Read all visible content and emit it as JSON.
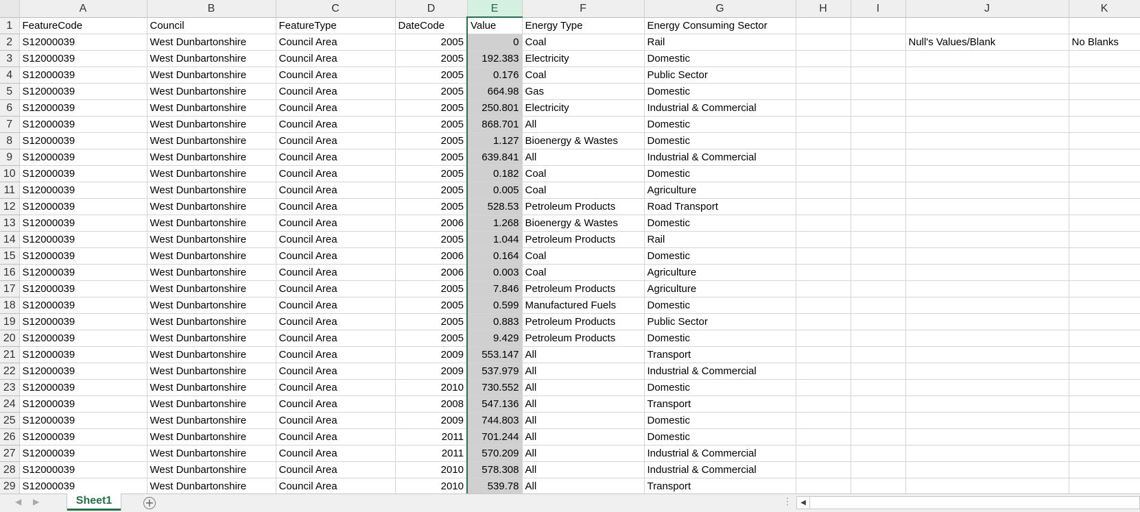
{
  "columns": [
    "A",
    "B",
    "C",
    "D",
    "E",
    "F",
    "G",
    "H",
    "I",
    "J",
    "K"
  ],
  "header": [
    "FeatureCode",
    "Council",
    "FeatureType",
    "DateCode",
    "Value",
    "Energy Type",
    "Energy Consuming Sector"
  ],
  "rows": [
    [
      "S12000039",
      "West Dunbartonshire",
      "Council Area",
      "2005",
      "0",
      "Coal",
      "Rail"
    ],
    [
      "S12000039",
      "West Dunbartonshire",
      "Council Area",
      "2005",
      "192.383",
      "Electricity",
      "Domestic"
    ],
    [
      "S12000039",
      "West Dunbartonshire",
      "Council Area",
      "2005",
      "0.176",
      "Coal",
      "Public Sector"
    ],
    [
      "S12000039",
      "West Dunbartonshire",
      "Council Area",
      "2005",
      "664.98",
      "Gas",
      "Domestic"
    ],
    [
      "S12000039",
      "West Dunbartonshire",
      "Council Area",
      "2005",
      "250.801",
      "Electricity",
      "Industrial & Commercial"
    ],
    [
      "S12000039",
      "West Dunbartonshire",
      "Council Area",
      "2005",
      "868.701",
      "All",
      "Domestic"
    ],
    [
      "S12000039",
      "West Dunbartonshire",
      "Council Area",
      "2005",
      "1.127",
      "Bioenergy & Wastes",
      "Domestic"
    ],
    [
      "S12000039",
      "West Dunbartonshire",
      "Council Area",
      "2005",
      "639.841",
      "All",
      "Industrial & Commercial"
    ],
    [
      "S12000039",
      "West Dunbartonshire",
      "Council Area",
      "2005",
      "0.182",
      "Coal",
      "Domestic"
    ],
    [
      "S12000039",
      "West Dunbartonshire",
      "Council Area",
      "2005",
      "0.005",
      "Coal",
      "Agriculture"
    ],
    [
      "S12000039",
      "West Dunbartonshire",
      "Council Area",
      "2005",
      "528.53",
      "Petroleum Products",
      "Road Transport"
    ],
    [
      "S12000039",
      "West Dunbartonshire",
      "Council Area",
      "2006",
      "1.268",
      "Bioenergy & Wastes",
      "Domestic"
    ],
    [
      "S12000039",
      "West Dunbartonshire",
      "Council Area",
      "2005",
      "1.044",
      "Petroleum Products",
      "Rail"
    ],
    [
      "S12000039",
      "West Dunbartonshire",
      "Council Area",
      "2006",
      "0.164",
      "Coal",
      "Domestic"
    ],
    [
      "S12000039",
      "West Dunbartonshire",
      "Council Area",
      "2006",
      "0.003",
      "Coal",
      "Agriculture"
    ],
    [
      "S12000039",
      "West Dunbartonshire",
      "Council Area",
      "2005",
      "7.846",
      "Petroleum Products",
      "Agriculture"
    ],
    [
      "S12000039",
      "West Dunbartonshire",
      "Council Area",
      "2005",
      "0.599",
      "Manufactured Fuels",
      "Domestic"
    ],
    [
      "S12000039",
      "West Dunbartonshire",
      "Council Area",
      "2005",
      "0.883",
      "Petroleum Products",
      "Public Sector"
    ],
    [
      "S12000039",
      "West Dunbartonshire",
      "Council Area",
      "2005",
      "9.429",
      "Petroleum Products",
      "Domestic"
    ],
    [
      "S12000039",
      "West Dunbartonshire",
      "Council Area",
      "2009",
      "553.147",
      "All",
      "Transport"
    ],
    [
      "S12000039",
      "West Dunbartonshire",
      "Council Area",
      "2009",
      "537.979",
      "All",
      "Industrial & Commercial"
    ],
    [
      "S12000039",
      "West Dunbartonshire",
      "Council Area",
      "2010",
      "730.552",
      "All",
      "Domestic"
    ],
    [
      "S12000039",
      "West Dunbartonshire",
      "Council Area",
      "2008",
      "547.136",
      "All",
      "Transport"
    ],
    [
      "S12000039",
      "West Dunbartonshire",
      "Council Area",
      "2009",
      "744.803",
      "All",
      "Domestic"
    ],
    [
      "S12000039",
      "West Dunbartonshire",
      "Council Area",
      "2011",
      "701.244",
      "All",
      "Domestic"
    ],
    [
      "S12000039",
      "West Dunbartonshire",
      "Council Area",
      "2011",
      "570.209",
      "All",
      "Industrial & Commercial"
    ],
    [
      "S12000039",
      "West Dunbartonshire",
      "Council Area",
      "2010",
      "578.308",
      "All",
      "Industrial & Commercial"
    ],
    [
      "S12000039",
      "West Dunbartonshire",
      "Council Area",
      "2010",
      "539.78",
      "All",
      "Transport"
    ]
  ],
  "notes": {
    "j2": "Null's Values/Blank",
    "k2": "No Blanks"
  },
  "selected_column": "E",
  "sheet_tab": "Sheet1",
  "icons": {
    "prev_sheet": "triangle-left-icon",
    "next_sheet": "triangle-right-icon",
    "add_sheet": "plus-circle-icon",
    "scroll_left": "scroll-left-arrow-icon"
  },
  "colors": {
    "accent": "#217346",
    "selection_fill": "#d0d0d0",
    "header_bg": "#efefef"
  }
}
